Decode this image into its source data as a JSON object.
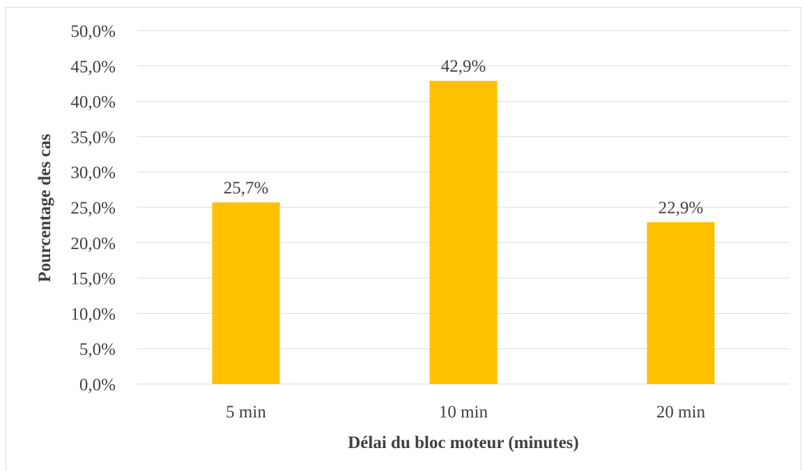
{
  "chart_data": {
    "type": "bar",
    "title": "",
    "xlabel": "Délai du bloc moteur (minutes)",
    "ylabel": "Pourcentage des cas",
    "categories": [
      "5 min",
      "10 min",
      "20 min"
    ],
    "values": [
      25.7,
      42.9,
      22.9
    ],
    "data_labels": [
      "25,7%",
      "42,9%",
      "22,9%"
    ],
    "ylim": [
      0,
      50
    ],
    "yticks": [
      0,
      5,
      10,
      15,
      20,
      25,
      30,
      35,
      40,
      45,
      50
    ],
    "ytick_labels": [
      "0,0%",
      "5,0%",
      "10,0%",
      "15,0%",
      "20,0%",
      "25,0%",
      "30,0%",
      "35,0%",
      "40,0%",
      "45,0%",
      "50,0%"
    ],
    "grid": true,
    "legend": "none",
    "bar_color": "#FFC000",
    "grid_color": "#d9d9d9"
  }
}
